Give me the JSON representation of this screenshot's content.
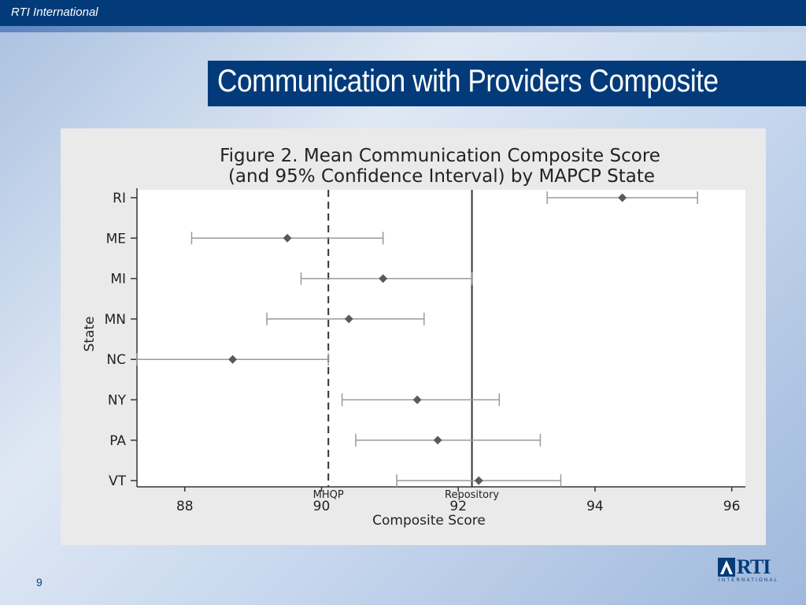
{
  "header": {
    "org_name": "RTI International"
  },
  "slide": {
    "title": "Communication with Providers Composite",
    "page_number": "9"
  },
  "logo": {
    "text": "RTI",
    "subtext": "INTERNATIONAL",
    "icon": "rti-logo-icon"
  },
  "colors": {
    "brand": "#033b7a",
    "marker": "#5a5a5a",
    "ci": "#9a9a9a",
    "panel": "#eaeaea"
  },
  "chart_data": {
    "type": "scatter",
    "title": "Figure 2. Mean Communication Composite Score",
    "subtitle": "(and 95% Confidence Interval) by MAPCP State",
    "xlabel": "Composite Score",
    "ylabel": "State",
    "xlim": [
      87.3,
      96.2
    ],
    "xticks": [
      88,
      90,
      92,
      94,
      96
    ],
    "categories": [
      "RI",
      "ME",
      "MI",
      "MN",
      "NC",
      "NY",
      "PA",
      "VT"
    ],
    "series": [
      {
        "mean": [
          94.4,
          89.5,
          90.9,
          90.4,
          88.7,
          91.4,
          91.7,
          92.3
        ],
        "ci_low": [
          93.3,
          88.1,
          89.7,
          89.2,
          87.3,
          90.3,
          90.5,
          91.1
        ],
        "ci_high": [
          95.5,
          90.9,
          92.2,
          91.5,
          90.1,
          92.6,
          93.2,
          93.5
        ]
      }
    ],
    "reference_lines": [
      {
        "label": "MHQP",
        "value": 90.1,
        "style": "dashed"
      },
      {
        "label": "Repository",
        "value": 92.2,
        "style": "solid"
      }
    ],
    "grid": false,
    "legend": "none"
  }
}
